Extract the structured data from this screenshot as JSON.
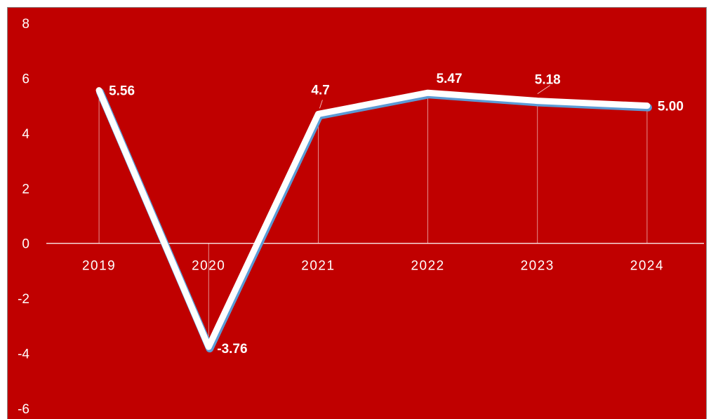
{
  "chart_data": {
    "type": "line",
    "title": "",
    "xlabel": "",
    "ylabel": "",
    "categories": [
      "2019",
      "2020",
      "2021",
      "2022",
      "2023",
      "2024"
    ],
    "series": [
      {
        "values": [
          5.56,
          -3.76,
          4.7,
          5.47,
          5.18,
          5.0
        ]
      }
    ],
    "data_labels": [
      "5.56",
      "-3.76",
      "4.7",
      "5.47",
      "5.18",
      "5.00"
    ],
    "y_ticks": [
      "8",
      "6",
      "4",
      "2",
      "0",
      "-2",
      "-4",
      "-6"
    ],
    "ylim": [
      -6,
      8
    ],
    "grid": false,
    "legend": "none",
    "background_color": "#c00000",
    "line_color": "#ffffff",
    "line_shadow_color": "#5b9bd5",
    "drop_line_color": "#f2c4c4"
  }
}
